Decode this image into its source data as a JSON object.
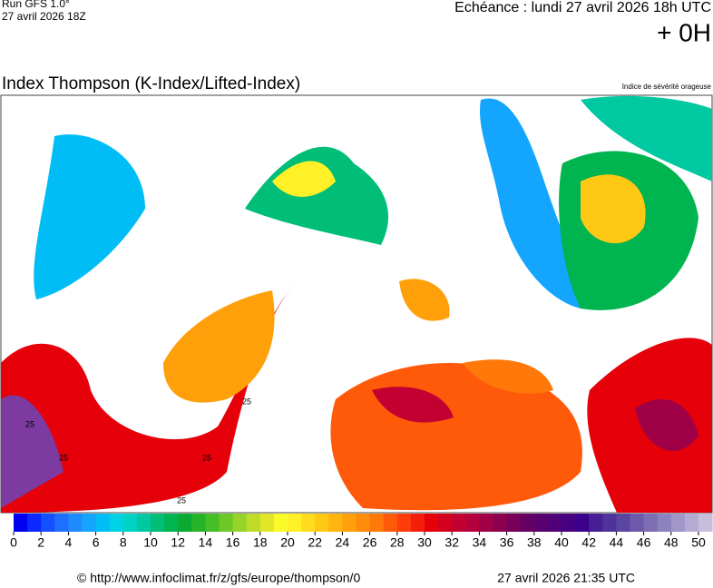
{
  "header": {
    "run": "Run GFS 1.0°",
    "run_date": "27 avril 2026 18Z",
    "echeance": "Echéance : lundi 27 avril 2026 18h UTC",
    "offset": "+ 0H"
  },
  "title": "Index Thompson (K-Index/Lifted-Index)",
  "subtitle": "Indice de sévérité orageuse",
  "map": {
    "contour_labels": [
      "25",
      "25",
      "25",
      "25",
      "25"
    ]
  },
  "colorbar": {
    "ticks": [
      0,
      2,
      4,
      6,
      8,
      10,
      12,
      14,
      16,
      18,
      20,
      22,
      24,
      26,
      28,
      30,
      32,
      34,
      36,
      38,
      40,
      42,
      44,
      46,
      48,
      50
    ],
    "colors": [
      "#0000f0",
      "#0a28ff",
      "#1450ff",
      "#1e6eff",
      "#1e8cff",
      "#14a5ff",
      "#00bef5",
      "#00d2e6",
      "#00d2c3",
      "#00c8a0",
      "#00be78",
      "#00b450",
      "#0aaa32",
      "#28b428",
      "#46be28",
      "#6ec828",
      "#96d228",
      "#bedc28",
      "#e1e628",
      "#fafa28",
      "#fff028",
      "#ffdc1e",
      "#ffc814",
      "#ffb40f",
      "#ffa00a",
      "#ff8c0a",
      "#ff780a",
      "#ff5a0a",
      "#ff3c0a",
      "#f51e0a",
      "#e6000a",
      "#d2001e",
      "#c30032",
      "#b4003c",
      "#a00046",
      "#8c0050",
      "#78005a",
      "#640064",
      "#5a006e",
      "#500078",
      "#460082",
      "#3c008c",
      "#461e96",
      "#50329b",
      "#5a46a0",
      "#6e5aaa",
      "#7d6eb4",
      "#8c82be",
      "#a096c8",
      "#b4aad2",
      "#c8bedc"
    ]
  },
  "footer": {
    "url": "© http://www.infoclimat.fr/z/gfs/europe/thompson/0",
    "generated": "27 avril 2026 21:35 UTC"
  }
}
